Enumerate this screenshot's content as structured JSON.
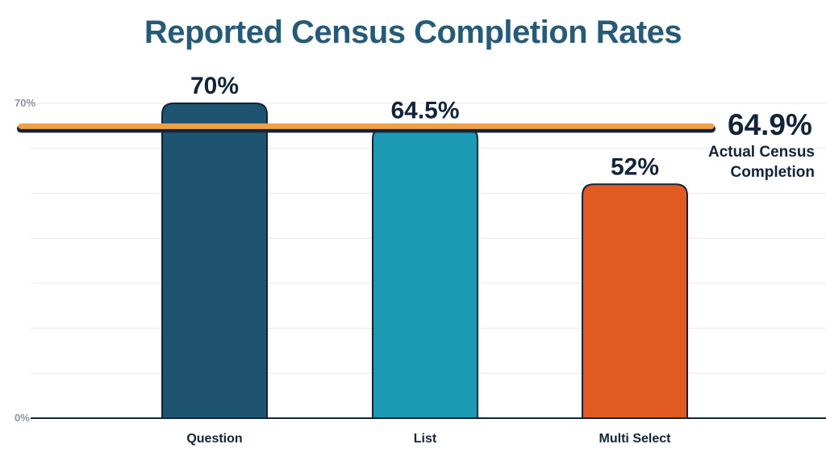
{
  "chart_data": {
    "type": "bar",
    "title": "Reported Census Completion Rates",
    "categories": [
      "Question",
      "List",
      "Multi Select"
    ],
    "values": [
      70,
      64.5,
      52
    ],
    "data_labels": [
      "70%",
      "64.5%",
      "52%"
    ],
    "ylim": [
      0,
      70
    ],
    "y_tick_labels": [
      "0%",
      "70%"
    ],
    "gridlines": true,
    "reference_line": {
      "value": 64.9,
      "label": "64.9%",
      "caption_line1": "Actual Census",
      "caption_line2": "Completion",
      "color": "#f0a045"
    },
    "bar_colors": [
      "#1f5470",
      "#1d9ab3",
      "#e05a22"
    ],
    "colors": {
      "title": "#265a78",
      "text": "#13243a",
      "tick": "#8a94a0",
      "grid": "#e6e8eb",
      "axis": "#13243a"
    }
  }
}
